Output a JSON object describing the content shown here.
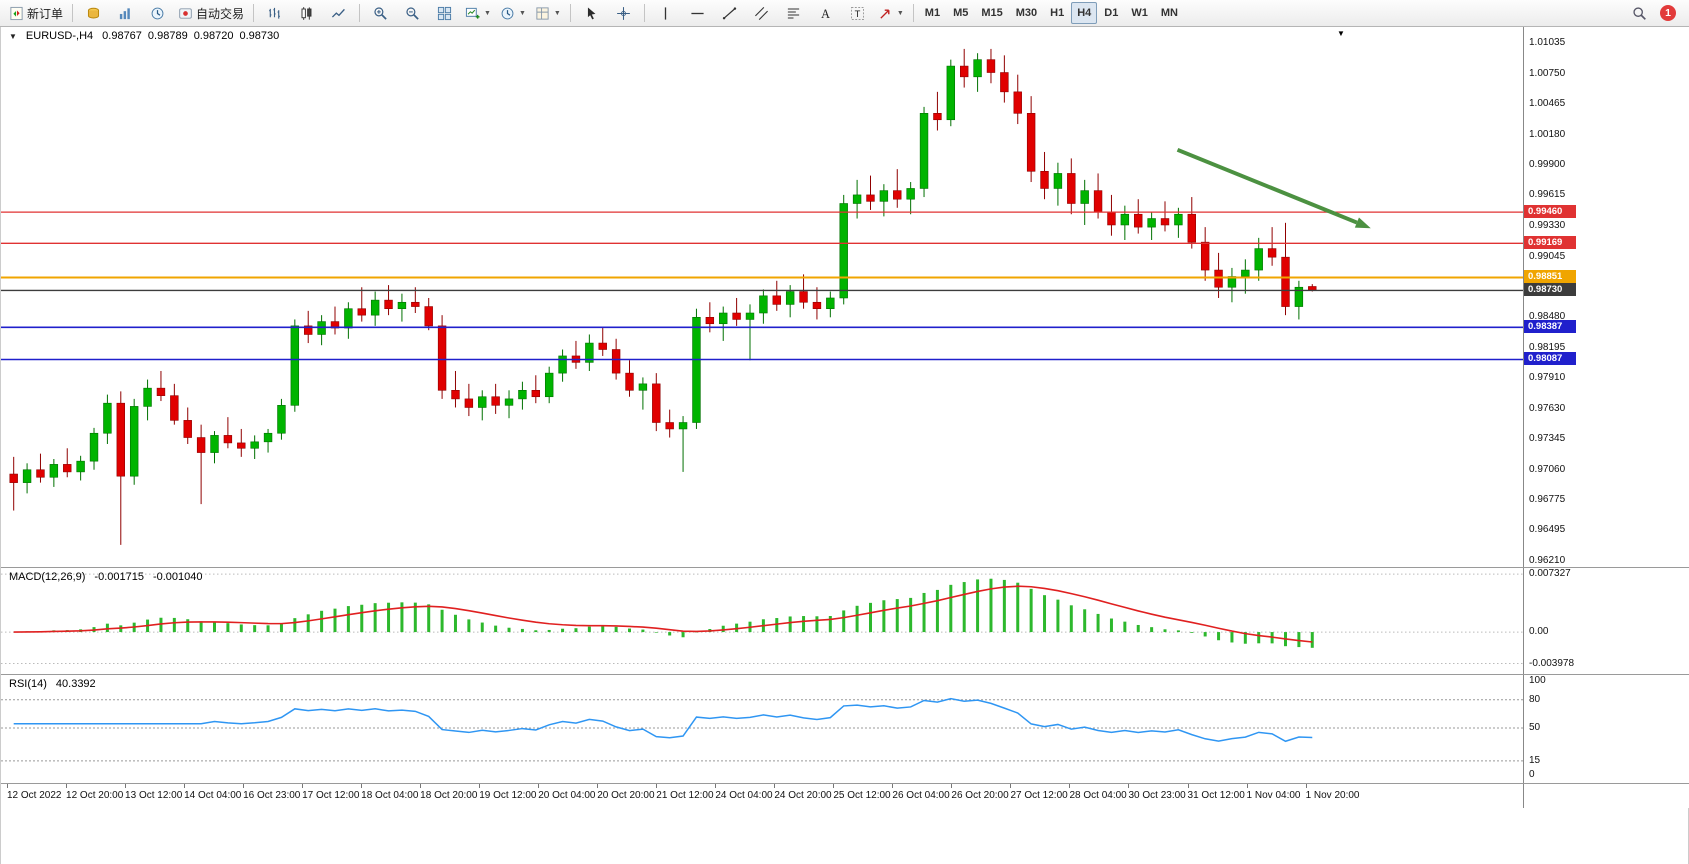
{
  "toolbar": {
    "new_order_label": "新订单",
    "autotrading_label": "自动交易",
    "timeframes": [
      "M1",
      "M5",
      "M15",
      "M30",
      "H1",
      "H4",
      "D1",
      "W1",
      "MN"
    ],
    "active_timeframe": "H4",
    "notification_count": "1"
  },
  "chart_data": {
    "type": "candlestick",
    "title_label": "EURUSD-,H4",
    "timeframe": "H4",
    "ohlc_display": [
      "0.98767",
      "0.98789",
      "0.98720",
      "0.98730"
    ],
    "ylim": [
      0.9621,
      1.01035
    ],
    "price_axis_labels": [
      "1.01035",
      "1.00750",
      "1.00465",
      "1.00180",
      "0.99900",
      "0.99615",
      "0.99330",
      "0.99045",
      "0.98480",
      "0.98195",
      "0.97910",
      "0.97630",
      "0.97345",
      "0.97060",
      "0.96775",
      "0.96495",
      "0.96210"
    ],
    "colors": {
      "bull": "#00b400",
      "bear": "#e00000",
      "bull_stroke": "#007000",
      "bear_stroke": "#900000"
    },
    "candles": [
      [
        0.9702,
        0.9718,
        0.9668,
        0.9694
      ],
      [
        0.9694,
        0.9712,
        0.9684,
        0.9706
      ],
      [
        0.9706,
        0.9721,
        0.9694,
        0.9699
      ],
      [
        0.9699,
        0.9716,
        0.969,
        0.9711
      ],
      [
        0.9711,
        0.9726,
        0.9699,
        0.9704
      ],
      [
        0.9704,
        0.9719,
        0.9696,
        0.9714
      ],
      [
        0.9714,
        0.9745,
        0.9706,
        0.974
      ],
      [
        0.974,
        0.9776,
        0.973,
        0.9768
      ],
      [
        0.9768,
        0.9779,
        0.9636,
        0.97
      ],
      [
        0.97,
        0.9772,
        0.9692,
        0.9765
      ],
      [
        0.9765,
        0.979,
        0.9752,
        0.9782
      ],
      [
        0.9782,
        0.9798,
        0.977,
        0.9775
      ],
      [
        0.9775,
        0.9786,
        0.9748,
        0.9752
      ],
      [
        0.9752,
        0.9764,
        0.973,
        0.9736
      ],
      [
        0.9736,
        0.9748,
        0.9674,
        0.9722
      ],
      [
        0.9722,
        0.9742,
        0.9712,
        0.9738
      ],
      [
        0.9738,
        0.9755,
        0.9726,
        0.9731
      ],
      [
        0.9731,
        0.9744,
        0.9718,
        0.9726
      ],
      [
        0.9726,
        0.9738,
        0.9716,
        0.9732
      ],
      [
        0.9732,
        0.9744,
        0.9722,
        0.974
      ],
      [
        0.974,
        0.9772,
        0.9734,
        0.9766
      ],
      [
        0.9766,
        0.9846,
        0.976,
        0.984
      ],
      [
        0.984,
        0.9854,
        0.9824,
        0.9832
      ],
      [
        0.9832,
        0.985,
        0.9822,
        0.9844
      ],
      [
        0.9844,
        0.9858,
        0.9832,
        0.9838
      ],
      [
        0.9838,
        0.9862,
        0.9828,
        0.9856
      ],
      [
        0.9856,
        0.9876,
        0.9844,
        0.985
      ],
      [
        0.985,
        0.9872,
        0.984,
        0.9864
      ],
      [
        0.9864,
        0.9878,
        0.985,
        0.9856
      ],
      [
        0.9856,
        0.987,
        0.9844,
        0.9862
      ],
      [
        0.9862,
        0.9876,
        0.9852,
        0.9858
      ],
      [
        0.9858,
        0.9866,
        0.9836,
        0.984
      ],
      [
        0.984,
        0.985,
        0.9772,
        0.978
      ],
      [
        0.978,
        0.9798,
        0.9764,
        0.9772
      ],
      [
        0.9772,
        0.9786,
        0.9756,
        0.9764
      ],
      [
        0.9764,
        0.978,
        0.9752,
        0.9774
      ],
      [
        0.9774,
        0.9786,
        0.9758,
        0.9766
      ],
      [
        0.9766,
        0.978,
        0.9754,
        0.9772
      ],
      [
        0.9772,
        0.9788,
        0.9762,
        0.978
      ],
      [
        0.978,
        0.9794,
        0.9768,
        0.9774
      ],
      [
        0.9774,
        0.9802,
        0.9768,
        0.9796
      ],
      [
        0.9796,
        0.9818,
        0.9788,
        0.9812
      ],
      [
        0.9812,
        0.9826,
        0.98,
        0.9806
      ],
      [
        0.9806,
        0.9832,
        0.9798,
        0.9824
      ],
      [
        0.9824,
        0.9838,
        0.9812,
        0.9818
      ],
      [
        0.9818,
        0.9828,
        0.979,
        0.9796
      ],
      [
        0.9796,
        0.9808,
        0.9774,
        0.978
      ],
      [
        0.978,
        0.9792,
        0.9762,
        0.9786
      ],
      [
        0.9786,
        0.9796,
        0.9742,
        0.975
      ],
      [
        0.975,
        0.9762,
        0.9736,
        0.9744
      ],
      [
        0.9744,
        0.9756,
        0.9704,
        0.975
      ],
      [
        0.975,
        0.9856,
        0.9744,
        0.9848
      ],
      [
        0.9848,
        0.9862,
        0.9834,
        0.9842
      ],
      [
        0.9842,
        0.9858,
        0.9826,
        0.9852
      ],
      [
        0.9852,
        0.9866,
        0.984,
        0.9846
      ],
      [
        0.9846,
        0.986,
        0.9808,
        0.9852
      ],
      [
        0.9852,
        0.9874,
        0.9842,
        0.9868
      ],
      [
        0.9868,
        0.9882,
        0.9854,
        0.986
      ],
      [
        0.986,
        0.9878,
        0.9848,
        0.9872
      ],
      [
        0.9872,
        0.9888,
        0.9856,
        0.9862
      ],
      [
        0.9862,
        0.9876,
        0.9846,
        0.9856
      ],
      [
        0.9856,
        0.9872,
        0.9848,
        0.9866
      ],
      [
        0.9866,
        0.9962,
        0.986,
        0.9954
      ],
      [
        0.9954,
        0.9976,
        0.994,
        0.9962
      ],
      [
        0.9962,
        0.998,
        0.9948,
        0.9956
      ],
      [
        0.9956,
        0.9972,
        0.9942,
        0.9966
      ],
      [
        0.9966,
        0.9986,
        0.995,
        0.9958
      ],
      [
        0.9958,
        0.9974,
        0.9944,
        0.9968
      ],
      [
        0.9968,
        1.0044,
        0.996,
        1.0038
      ],
      [
        1.0038,
        1.0058,
        1.0022,
        1.0032
      ],
      [
        1.0032,
        1.0088,
        1.0026,
        1.0082
      ],
      [
        1.0082,
        1.0098,
        1.0062,
        1.0072
      ],
      [
        1.0072,
        1.0094,
        1.0058,
        1.0088
      ],
      [
        1.0088,
        1.0098,
        1.0066,
        1.0076
      ],
      [
        1.0076,
        1.0092,
        1.0048,
        1.0058
      ],
      [
        1.0058,
        1.0074,
        1.0028,
        1.0038
      ],
      [
        1.0038,
        1.0054,
        0.9974,
        0.9984
      ],
      [
        0.9984,
        1.0002,
        0.9958,
        0.9968
      ],
      [
        0.9968,
        0.9992,
        0.9952,
        0.9982
      ],
      [
        0.9982,
        0.9996,
        0.9944,
        0.9954
      ],
      [
        0.9954,
        0.9976,
        0.9934,
        0.9966
      ],
      [
        0.9966,
        0.9982,
        0.994,
        0.9946
      ],
      [
        0.9946,
        0.9962,
        0.9924,
        0.9934
      ],
      [
        0.9934,
        0.9952,
        0.992,
        0.9944
      ],
      [
        0.9944,
        0.9958,
        0.9926,
        0.9932
      ],
      [
        0.9932,
        0.9946,
        0.992,
        0.994
      ],
      [
        0.994,
        0.9956,
        0.9928,
        0.9934
      ],
      [
        0.9934,
        0.995,
        0.9922,
        0.9944
      ],
      [
        0.9944,
        0.996,
        0.9912,
        0.9918
      ],
      [
        0.9918,
        0.9932,
        0.9882,
        0.9892
      ],
      [
        0.9892,
        0.9908,
        0.9866,
        0.9876
      ],
      [
        0.9876,
        0.9894,
        0.9862,
        0.9886
      ],
      [
        0.9886,
        0.9902,
        0.987,
        0.9892
      ],
      [
        0.9892,
        0.9922,
        0.9882,
        0.9912
      ],
      [
        0.9912,
        0.9932,
        0.9896,
        0.9904
      ],
      [
        0.9904,
        0.9936,
        0.985,
        0.9858
      ],
      [
        0.9858,
        0.9882,
        0.9846,
        0.9876
      ],
      [
        0.98767,
        0.98789,
        0.9872,
        0.9873
      ]
    ],
    "levels": [
      {
        "label": "0.99460",
        "value": 0.9946,
        "color": "#e03232",
        "width": 1.3
      },
      {
        "label": "0.99169",
        "value": 0.99169,
        "color": "#e03232",
        "width": 1.3
      },
      {
        "label": "0.98851",
        "value": 0.98851,
        "color": "#f0a500",
        "width": 2
      },
      {
        "label": "0.98730",
        "value": 0.9873,
        "color": "#3c3c3c",
        "width": 1.3
      },
      {
        "label": "0.98387",
        "value": 0.98387,
        "color": "#2020cc",
        "width": 1.6
      },
      {
        "label": "0.98087",
        "value": 0.98087,
        "color": "#2020cc",
        "width": 1.6
      }
    ],
    "trend_arrow": {
      "x1_frac": 0.773,
      "price1": 1.0004,
      "x2_frac": 0.9,
      "price2": 0.9931,
      "color": "#4c9141"
    },
    "time_labels": [
      "12 Oct 2022",
      "12 Oct 20:00",
      "13 Oct 12:00",
      "14 Oct 04:00",
      "16 Oct 23:00",
      "17 Oct 12:00",
      "18 Oct 04:00",
      "18 Oct 20:00",
      "19 Oct 12:00",
      "20 Oct 04:00",
      "20 Oct 20:00",
      "21 Oct 12:00",
      "24 Oct 04:00",
      "24 Oct 20:00",
      "25 Oct 12:00",
      "26 Oct 04:00",
      "26 Oct 20:00",
      "27 Oct 12:00",
      "28 Oct 04:00",
      "30 Oct 23:00",
      "31 Oct 12:00",
      "1 Nov 04:00",
      "1 Nov 20:00"
    ],
    "macd": {
      "label": "MACD(12,26,9)",
      "main_value": "-0.001715",
      "signal_value": "-0.001040",
      "params": [
        12,
        26,
        9
      ],
      "axis_labels": [
        "0.007327",
        "0.00",
        "-0.003978"
      ],
      "ylim": [
        -0.0048,
        0.0076
      ],
      "histogram_color": "#2db82d",
      "signal_color": "#e02020"
    },
    "rsi": {
      "label": "RSI(14)",
      "value": "40.3392",
      "period": 14,
      "axis_labels": [
        "100",
        "80",
        "50",
        "15",
        "0"
      ],
      "level_lines": [
        80,
        50,
        15
      ],
      "ylim": [
        0,
        100
      ],
      "line_color": "#2f96f3"
    }
  }
}
